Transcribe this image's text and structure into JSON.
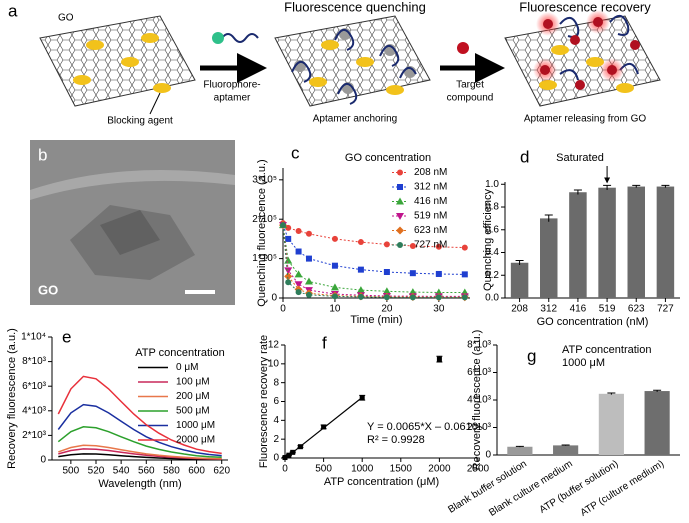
{
  "diagram": {
    "panel_label": "a",
    "go": "GO",
    "blocking_agent": "Blocking agent",
    "fluorophore_aptamer": [
      "Fluorophore-",
      "aptamer"
    ],
    "quenching_title": "Fluorescence quenching",
    "aptamer_anchoring": "Aptamer anchoring",
    "target_compound": [
      "Target",
      "compound"
    ],
    "recovery_title": "Fluorescence recovery",
    "aptamer_releasing": "Aptamer releasing from GO"
  },
  "image": {
    "panel_label": "b",
    "label": "GO"
  },
  "chart_data": [
    {
      "type": "line",
      "panel_label": "c",
      "y_label": "Quenching fluorescence (a.u.)",
      "x_label": "Time (min)",
      "legend_title": "GO concentration",
      "markers": true,
      "dashed": true,
      "x": [
        0,
        1,
        3,
        5,
        10,
        15,
        20,
        25,
        30,
        35
      ],
      "xlim": [
        0,
        36
      ],
      "xticks": [
        0,
        10,
        20,
        30
      ],
      "ylim": [
        0,
        330000
      ],
      "yticks": [
        0,
        {
          "value": 100000,
          "label": "1*10⁵"
        },
        {
          "value": 200000,
          "label": "2*10⁵"
        },
        {
          "value": 300000,
          "label": "3*10⁵"
        }
      ],
      "series": [
        {
          "name": "208 nM",
          "color": "#e8423a",
          "marker": "circle",
          "values": [
            190000,
            178000,
            170000,
            163000,
            150000,
            142000,
            136000,
            132000,
            130000,
            128000
          ]
        },
        {
          "name": "312 nM",
          "color": "#1f3fd0",
          "marker": "square",
          "values": [
            185000,
            150000,
            118000,
            100000,
            82000,
            72000,
            66000,
            63000,
            61000,
            60000
          ]
        },
        {
          "name": "416 nM",
          "color": "#3aa63a",
          "marker": "triangle",
          "values": [
            185000,
            95000,
            60000,
            42000,
            27000,
            20000,
            17000,
            15000,
            14000,
            14000
          ]
        },
        {
          "name": "519 nM",
          "color": "#c0148c",
          "marker": "triangle-down",
          "values": [
            185000,
            70000,
            35000,
            20000,
            10000,
            7000,
            5000,
            4500,
            4000,
            4000
          ]
        },
        {
          "name": "623 nM",
          "color": "#e07020",
          "marker": "diamond",
          "values": [
            185000,
            55000,
            22000,
            12000,
            6000,
            4000,
            3000,
            2500,
            2000,
            2000
          ]
        },
        {
          "name": "727 nM",
          "color": "#2e7d5b",
          "marker": "circle",
          "values": [
            185000,
            40000,
            15000,
            8000,
            4000,
            3000,
            2000,
            1500,
            1500,
            1500
          ]
        }
      ]
    },
    {
      "type": "bar",
      "panel_label": "d",
      "y_label": "Quenching efficiency",
      "x_label": "GO concentration (nM)",
      "categories": [
        "208",
        "312",
        "416",
        "519",
        "623",
        "727"
      ],
      "values": [
        0.31,
        0.7,
        0.93,
        0.97,
        0.98,
        0.98
      ],
      "errors": [
        0.02,
        0.03,
        0.02,
        0.02,
        0.01,
        0.01
      ],
      "color": "#6b6b6b",
      "ylim": [
        0,
        1.02
      ],
      "yticks": [
        {
          "value": 0,
          "label": "0.0"
        },
        0.2,
        0.4,
        0.6,
        0.8,
        {
          "value": 1,
          "label": "1.0"
        }
      ],
      "annotation": {
        "text": "Saturated",
        "category": "519"
      }
    },
    {
      "type": "line",
      "panel_label": "e",
      "y_label": "Recovery fluorescence (a.u.)",
      "x_label": "Wavelength (nm)",
      "legend_title": "ATP concentration",
      "markers": false,
      "dashed": false,
      "x": [
        490,
        500,
        510,
        520,
        530,
        540,
        550,
        560,
        570,
        580,
        590,
        600,
        610,
        620
      ],
      "xlim": [
        485,
        625
      ],
      "xticks": [
        500,
        520,
        540,
        560,
        580,
        600,
        620
      ],
      "ylim": [
        0,
        10000
      ],
      "yticks": [
        0,
        {
          "value": 2000,
          "label": "2*10³"
        },
        {
          "value": 4000,
          "label": "4*10³"
        },
        {
          "value": 6000,
          "label": "6*10³"
        },
        {
          "value": 8000,
          "label": "8*10³"
        },
        {
          "value": 10000,
          "label": "1*10⁴"
        }
      ],
      "series": [
        {
          "name": "0 μM",
          "color": "#000000",
          "values": [
            280,
            430,
            500,
            490,
            430,
            350,
            280,
            210,
            160,
            120,
            90,
            70,
            50,
            40
          ]
        },
        {
          "name": "100 μM",
          "color": "#c8285a",
          "values": [
            500,
            770,
            900,
            870,
            770,
            630,
            500,
            380,
            290,
            220,
            160,
            120,
            90,
            70
          ]
        },
        {
          "name": "200 μM",
          "color": "#e8774a",
          "values": [
            660,
            1020,
            1200,
            1160,
            1020,
            840,
            660,
            500,
            380,
            290,
            220,
            160,
            120,
            100
          ]
        },
        {
          "name": "500 μM",
          "color": "#2ca02c",
          "values": [
            1490,
            2300,
            2700,
            2620,
            2300,
            1890,
            1490,
            1130,
            860,
            650,
            490,
            350,
            270,
            220
          ]
        },
        {
          "name": "1000 μM",
          "color": "#1a2fa0",
          "values": [
            2480,
            3830,
            4500,
            4370,
            3830,
            3150,
            2480,
            1890,
            1440,
            1080,
            810,
            590,
            450,
            360
          ]
        },
        {
          "name": "2000 μM",
          "color": "#e8303a",
          "values": [
            3740,
            5780,
            6800,
            6600,
            5780,
            4760,
            3740,
            2860,
            2180,
            1630,
            1220,
            880,
            680,
            540
          ]
        }
      ]
    },
    {
      "type": "scatter",
      "panel_label": "f",
      "y_label": "Fluorescence recovery rate",
      "x_label": "ATP concentration (μM)",
      "x": [
        0,
        50,
        100,
        200,
        500,
        1000,
        2000
      ],
      "values": [
        0.05,
        0.3,
        0.6,
        1.2,
        3.3,
        6.4,
        10.5
      ],
      "errors": [
        0.05,
        0.05,
        0.05,
        0.1,
        0.2,
        0.25,
        0.3
      ],
      "color": "#000000",
      "xlim": [
        0,
        2500
      ],
      "xticks": [
        0,
        500,
        1000,
        1500,
        2000,
        2500
      ],
      "ylim": [
        0,
        12
      ],
      "yticks": [
        0,
        2,
        4,
        6,
        8,
        10,
        12
      ],
      "fit": {
        "slope": 0.0065,
        "intercept": -0.061,
        "x": [
          0,
          1000
        ]
      },
      "annotation": [
        "Y = 0.0065*X – 0.0610",
        "R² = 0.9928"
      ]
    },
    {
      "type": "bar",
      "panel_label": "g",
      "y_label": "Recovery fluorescence (a.u.)",
      "rotate_labels": true,
      "categories": [
        "Blank buffer solution",
        "Blank culture medium",
        "ATP (buffer solution)",
        "ATP (culture medium)"
      ],
      "values": [
        600,
        700,
        4450,
        4650
      ],
      "errors": [
        30,
        30,
        60,
        60
      ],
      "colors": [
        "#9a9a9a",
        "#7a7a7a",
        "#bdbdbd",
        "#6e6e6e"
      ],
      "ylim": [
        0,
        8000
      ],
      "yticks": [
        0,
        {
          "value": 2000,
          "label": "2*10³"
        },
        {
          "value": 4000,
          "label": "4*10³"
        },
        {
          "value": 6000,
          "label": "6*10³"
        },
        {
          "value": 8000,
          "label": "8*10³"
        }
      ],
      "annotation": [
        "ATP concentration",
        "1000 μM"
      ]
    }
  ]
}
